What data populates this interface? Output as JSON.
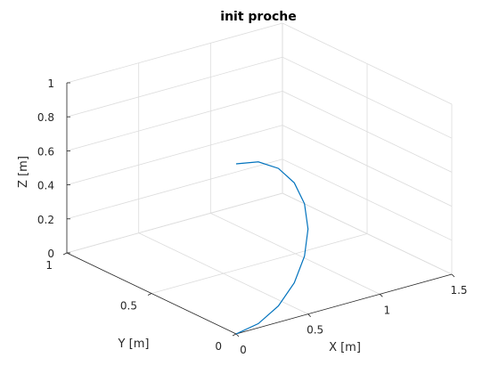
{
  "chart_data": {
    "type": "line",
    "title": "init proche",
    "xlabel": "X [m]",
    "ylabel": "Y [m]",
    "zlabel": "Z [m]",
    "xlim": [
      0,
      1.5
    ],
    "ylim": [
      0,
      1
    ],
    "zlim": [
      0,
      1
    ],
    "xticks": [
      "0",
      "0.5",
      "1",
      "1.5"
    ],
    "yticks": [
      "0",
      "0.5",
      "1"
    ],
    "zticks": [
      "0",
      "0.2",
      "0.4",
      "0.6",
      "0.8",
      "1"
    ],
    "grid": true,
    "series": [
      {
        "color": "#0072bd",
        "x": [
          0,
          0.1545,
          0.2939,
          0.4045,
          0.4755,
          0.5,
          0.4755,
          0.4045,
          0.2939,
          0.1545,
          0
        ],
        "y": [
          0,
          0,
          0,
          0,
          0,
          0,
          0,
          0,
          0,
          0,
          0
        ],
        "z": [
          0,
          0.0245,
          0.0955,
          0.2061,
          0.3455,
          0.5,
          0.6545,
          0.7939,
          0.9045,
          0.9755,
          1
        ]
      }
    ]
  }
}
